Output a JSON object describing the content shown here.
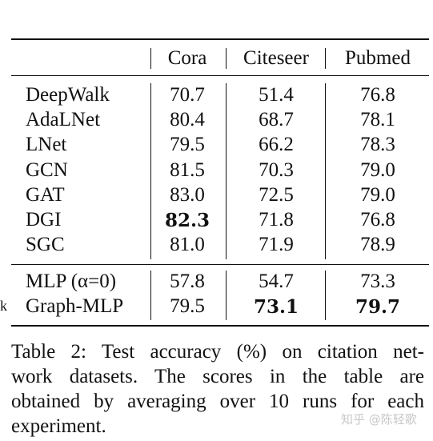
{
  "table": {
    "columns": [
      "Cora",
      "Citeseer",
      "Pubmed"
    ],
    "rows": [
      {
        "method": "DeepWalk",
        "values": [
          "70.7",
          "51.4",
          "76.8"
        ],
        "bold": [
          false,
          false,
          false
        ]
      },
      {
        "method": "AdaLNet",
        "values": [
          "80.4",
          "68.7",
          "78.1"
        ],
        "bold": [
          false,
          false,
          false
        ]
      },
      {
        "method": "LNet",
        "values": [
          "79.5",
          "66.2",
          "78.3"
        ],
        "bold": [
          false,
          false,
          false
        ]
      },
      {
        "method": "GCN",
        "values": [
          "81.5",
          "70.3",
          "79.0"
        ],
        "bold": [
          false,
          false,
          false
        ]
      },
      {
        "method": "GAT",
        "values": [
          "83.0",
          "72.5",
          "79.0"
        ],
        "bold": [
          false,
          false,
          false
        ]
      },
      {
        "method": "DGI",
        "values": [
          "82.3",
          "71.8",
          "76.8"
        ],
        "bold": [
          true,
          false,
          false
        ]
      },
      {
        "method": "SGC",
        "values": [
          "81.0",
          "71.9",
          "78.9"
        ],
        "bold": [
          false,
          false,
          false
        ]
      },
      {
        "method": "MLP (α=0)",
        "values": [
          "57.8",
          "54.7",
          "73.3"
        ],
        "bold": [
          false,
          false,
          false
        ]
      },
      {
        "method": "Graph-MLP",
        "values": [
          "79.5",
          "73.1",
          "79.7"
        ],
        "bold": [
          false,
          true,
          true
        ]
      }
    ]
  },
  "stray_mark": "k",
  "caption": {
    "lines": [
      "Table 2: Test accuracy (%) on citation net-",
      "work datasets. The scores in the table are",
      "obtained by averaging over 10 runs for each",
      "experiment."
    ]
  },
  "watermark": "知乎 @陈轻歌"
}
